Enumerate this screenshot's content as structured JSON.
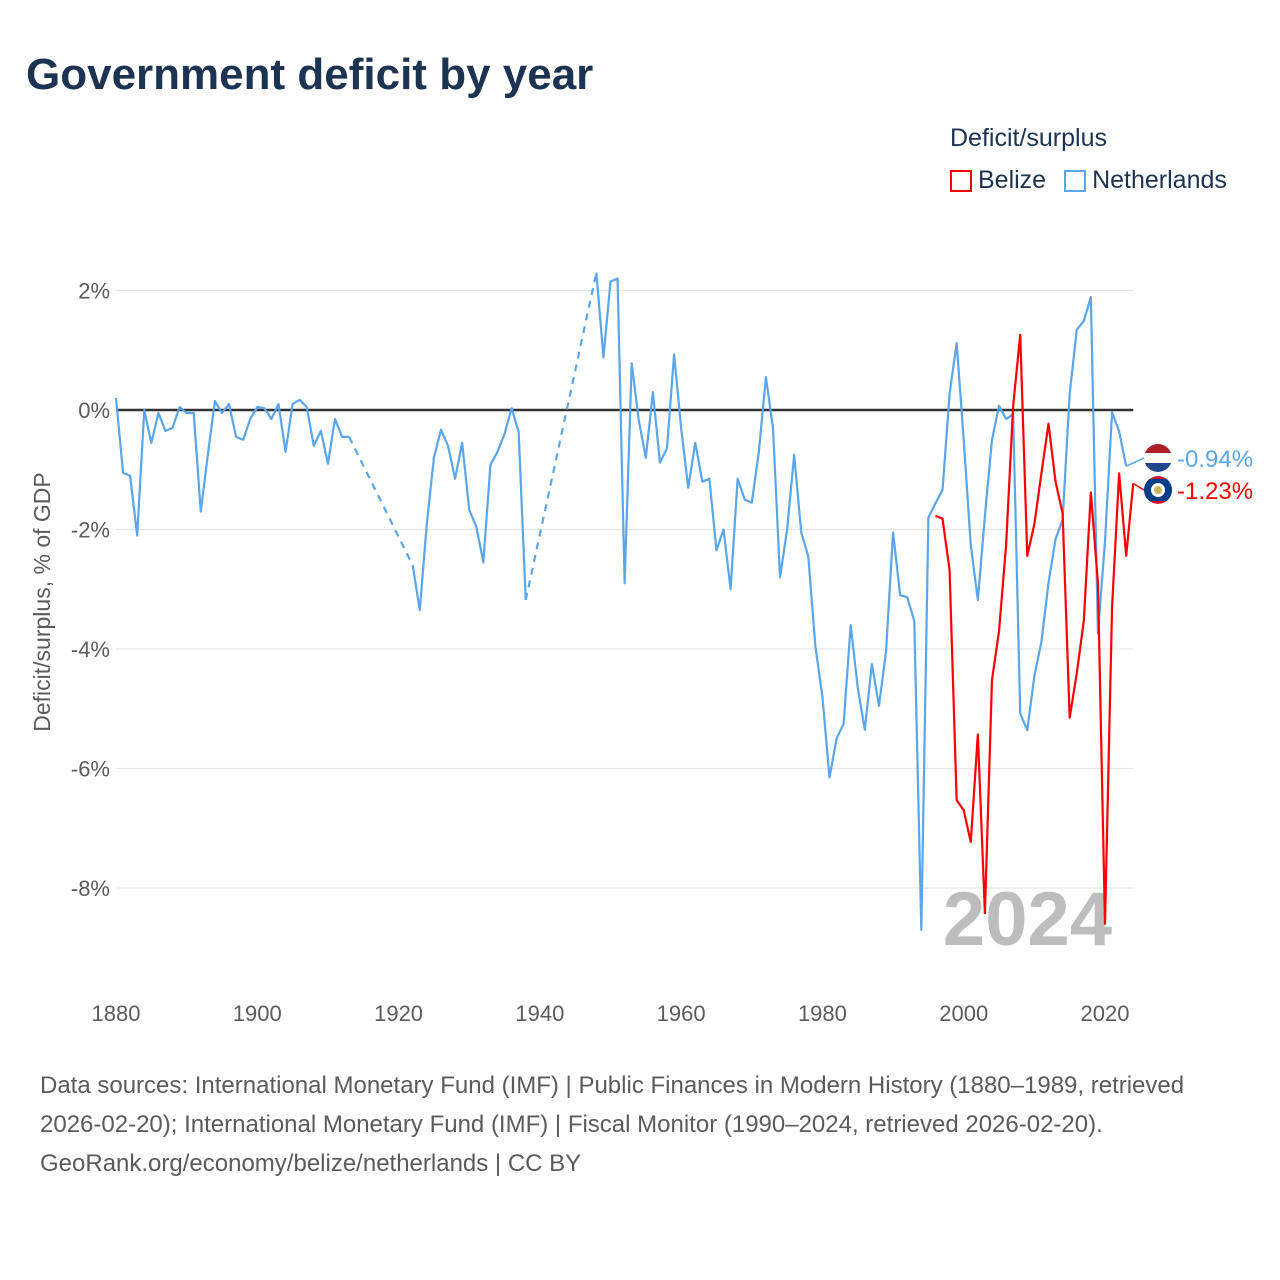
{
  "title": "Government deficit by year",
  "legend": {
    "title": "Deficit/surplus",
    "items": [
      {
        "label": "Belize",
        "color": "#ff0000"
      },
      {
        "label": "Netherlands",
        "color": "#5aa6ea"
      }
    ]
  },
  "footer": {
    "sources": "Data sources: International Monetary Fund (IMF) | Public Finances in Modern History (1880–1989, retrieved 2026-02-20); International Monetary Fund (IMF) | Fiscal Monitor (1990–2024, retrieved 2026-02-20).",
    "link": "GeoRank.org/economy/belize/netherlands | CC BY"
  },
  "chart_data": {
    "type": "line",
    "title": "Government deficit by year",
    "xlabel": "",
    "ylabel": "Deficit/surplus, % of GDP",
    "xlim": [
      1880,
      2024
    ],
    "ylim": [
      -9,
      2.5
    ],
    "x_ticks": [
      1880,
      1900,
      1920,
      1940,
      1960,
      1980,
      2000,
      2020
    ],
    "x_tick_labels": [
      "1880",
      "1900",
      "1920",
      "1940",
      "1960",
      "1980",
      "2000",
      "2020"
    ],
    "y_ticks": [
      2,
      0,
      -2,
      -4,
      -6,
      -8
    ],
    "y_tick_labels": [
      "2%",
      "0%",
      "-2%",
      "-4%",
      "-6%",
      "-8%"
    ],
    "grid": true,
    "legend_position": "top-right",
    "year_watermark": "2024",
    "series": [
      {
        "name": "Netherlands",
        "color": "#5aa6ea",
        "end_label": "-0.94%",
        "start_year": 1880,
        "values": [
          0.2,
          -1.05,
          -1.1,
          -2.1,
          0,
          -0.55,
          -0.05,
          -0.35,
          -0.3,
          0.05,
          -0.05,
          -0.05,
          -1.7,
          -0.75,
          0.15,
          -0.05,
          0.1,
          -0.45,
          -0.5,
          -0.15,
          0.05,
          0.03,
          -0.15,
          0.1,
          -0.7,
          0.1,
          0.17,
          0.05,
          -0.6,
          -0.35,
          -0.9,
          -0.15,
          -0.45,
          -0.45,
          null,
          null,
          null,
          null,
          null,
          null,
          null,
          null,
          -2.6,
          -3.35,
          -1.9,
          -0.8,
          -0.33,
          -0.6,
          -1.15,
          -0.55,
          -1.67,
          -1.95,
          -2.55,
          -0.92,
          -0.7,
          -0.4,
          0.03,
          -0.37,
          -3.18,
          null,
          null,
          null,
          null,
          null,
          null,
          null,
          null,
          null,
          2.3,
          0.88,
          2.15,
          2.2,
          -2.9,
          0.78,
          -0.17,
          -0.8,
          0.3,
          -0.88,
          -0.64,
          0.93,
          -0.3,
          -1.3,
          -0.55,
          -1.2,
          -1.15,
          -2.35,
          -2.0,
          -3.0,
          -1.15,
          -1.5,
          -1.55,
          -0.7,
          0.55,
          -0.3,
          -2.8,
          -2.0,
          -0.75,
          -2.05,
          -2.45,
          -3.95,
          -4.8,
          -6.15,
          -5.5,
          -5.25,
          -3.6,
          -4.65,
          -5.35,
          -4.25,
          -4.95,
          -4.05,
          -2.05,
          -3.1,
          -3.13,
          -3.53,
          -8.7,
          -1.8,
          -1.56,
          -1.34,
          0.27,
          1.12,
          -0.5,
          -2.26,
          -3.18,
          -1.77,
          -0.5,
          0.07,
          -0.15,
          -0.07,
          -5.08,
          -5.36,
          -4.45,
          -3.88,
          -2.9,
          -2.16,
          -1.84,
          0.27,
          1.34,
          1.49,
          1.89,
          -3.74,
          -2.2,
          -0.04,
          -0.36,
          -0.94
        ]
      },
      {
        "name": "Belize",
        "color": "#ff0000",
        "end_label": "-1.23%",
        "start_year": 1996,
        "values": [
          -1.77,
          -1.82,
          -2.68,
          -6.53,
          -6.7,
          -7.23,
          -5.43,
          -8.42,
          -4.52,
          -3.7,
          -2.26,
          0.07,
          1.26,
          -2.44,
          -1.91,
          -1.06,
          -0.23,
          -1.2,
          -1.73,
          -5.15,
          -4.41,
          -3.53,
          -1.38,
          -2.9,
          -8.6,
          -3.3,
          -1.06,
          -2.44,
          -1.23
        ]
      }
    ]
  }
}
